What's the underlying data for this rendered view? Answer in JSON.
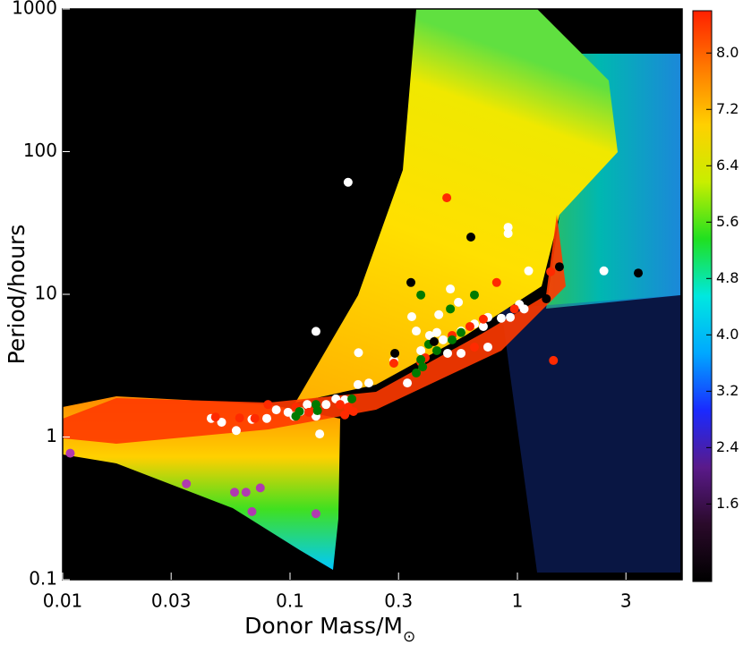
{
  "chart_data": {
    "type": "scatter",
    "xlabel": {
      "text": "Donor Mass/M",
      "subscript": "⊙"
    },
    "ylabel": "Period/hours",
    "xscale": "log",
    "yscale": "log",
    "xlim": [
      0.01,
      5.3
    ],
    "ylim": [
      0.1,
      1000
    ],
    "xticks": [
      0.01,
      0.03,
      0.1,
      0.3,
      1,
      3
    ],
    "yticks": [
      0.1,
      1,
      10,
      100,
      1000
    ],
    "series": [
      {
        "color": "#ffffff",
        "x": [
          0.18,
          0.13,
          0.2,
          0.91,
          0.91,
          1.12,
          2.4,
          0.045,
          0.05,
          0.058,
          0.068,
          0.079,
          0.087,
          0.098,
          0.104,
          0.111,
          0.119,
          0.13,
          0.135,
          0.144,
          0.159,
          0.174,
          0.199,
          0.222,
          0.343,
          0.359,
          0.411,
          0.507,
          0.55,
          0.442,
          0.471,
          0.516,
          0.565,
          0.647,
          0.708,
          0.741,
          0.849,
          0.93,
          1.02,
          1.07,
          0.741,
          0.565,
          0.493,
          0.376,
          0.328,
          0.286,
          0.451
        ],
        "y": [
          61,
          5.5,
          3.9,
          29.5,
          26.7,
          14.6,
          14.6,
          1.35,
          1.27,
          1.11,
          1.33,
          1.35,
          1.55,
          1.49,
          1.4,
          1.51,
          1.69,
          1.4,
          1.05,
          1.69,
          1.85,
          1.82,
          2.33,
          2.39,
          6.97,
          5.53,
          5.15,
          10.9,
          8.8,
          5.4,
          4.8,
          4.9,
          5.53,
          6.2,
          5.95,
          6.9,
          6.8,
          6.9,
          8.5,
          7.9,
          4.27,
          3.86,
          3.86,
          4.03,
          2.39,
          3.44,
          7.2
        ]
      },
      {
        "color": "#ff2a00",
        "x": [
          0.489,
          0.047,
          0.06,
          0.07,
          0.08,
          0.106,
          0.121,
          0.174,
          0.18,
          0.19,
          0.166,
          0.286,
          0.376,
          0.393,
          0.516,
          0.618,
          0.647,
          0.81,
          0.97,
          1.4,
          1.44,
          0.708
        ],
        "y": [
          47.5,
          1.38,
          1.36,
          1.35,
          1.69,
          1.62,
          1.49,
          1.43,
          1.62,
          1.51,
          1.69,
          3.29,
          3.35,
          3.59,
          5.15,
          5.95,
          4.27,
          12.1,
          7.9,
          14.4,
          3.44,
          6.7
        ]
      },
      {
        "color": "#007a00",
        "x": [
          0.376,
          0.507,
          0.647,
          0.407,
          0.442,
          0.516,
          0.376,
          0.359,
          0.383,
          0.187,
          0.13,
          0.132,
          0.11,
          0.106,
          0.565
        ],
        "y": [
          9.9,
          7.9,
          9.9,
          4.46,
          4.03,
          4.8,
          3.49,
          2.81,
          3.1,
          1.85,
          1.69,
          1.53,
          1.51,
          1.4,
          5.4
        ]
      },
      {
        "color": "#000000",
        "x": [
          0.624,
          0.34,
          1.53,
          1.34,
          3.4,
          0.289,
          0.43
        ],
        "y": [
          25.2,
          12.1,
          15.6,
          9.3,
          14.1,
          3.86,
          4.66
        ]
      },
      {
        "color": "#b03ab0",
        "x": [
          0.0108,
          0.035,
          0.057,
          0.064,
          0.074,
          0.068,
          0.13
        ],
        "y": [
          0.77,
          0.47,
          0.41,
          0.41,
          0.44,
          0.3,
          0.29
        ]
      }
    ],
    "colorbar": {
      "clim": [
        0.5,
        8.6
      ],
      "colors": [
        "#000000",
        "#2a0a2a",
        "#5a1a8a",
        "#1a2aff",
        "#00a8ff",
        "#00e8e0",
        "#20e020",
        "#c8ee00",
        "#ffd000",
        "#ff7a00",
        "#ff2000"
      ],
      "ticks": [
        {
          "value": 1.6,
          "label": "1.6"
        },
        {
          "value": 2.4,
          "label": "2.4"
        },
        {
          "value": 3.2,
          "label": "3.2"
        },
        {
          "value": 4.0,
          "label": "4.0"
        },
        {
          "value": 4.8,
          "label": "4.8"
        },
        {
          "value": 5.6,
          "label": "5.6"
        },
        {
          "value": 6.4,
          "label": "6.4"
        },
        {
          "value": 7.2,
          "label": "7.2"
        },
        {
          "value": 8.0,
          "label": "8.0"
        }
      ]
    }
  }
}
